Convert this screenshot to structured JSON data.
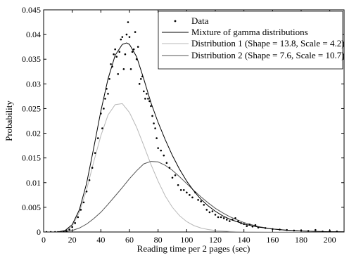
{
  "chart_data": {
    "type": "line",
    "title": "",
    "xlabel": "Reading time per 2 pages (sec)",
    "ylabel": "Probability",
    "xlim": [
      0,
      210
    ],
    "ylim": [
      0,
      0.045
    ],
    "xticks": [
      0,
      20,
      40,
      60,
      80,
      100,
      120,
      140,
      160,
      180,
      200
    ],
    "yticks": [
      0,
      0.005,
      0.01,
      0.015,
      0.02,
      0.025,
      0.03,
      0.035,
      0.04,
      0.045
    ],
    "ytick_labels": [
      "0",
      "0.005",
      "0.01",
      "0.015",
      "0.02",
      "0.025",
      "0.03",
      "0.035",
      "0.04",
      "0.045"
    ],
    "grid": false,
    "legend_position": "top-right",
    "colors": {
      "data": "#000000",
      "mixture": "#000000",
      "dist1": "#b8b8b8",
      "dist2": "#555555"
    },
    "series": [
      {
        "name": "Data",
        "style": "points",
        "x": [
          2,
          5,
          8,
          10,
          12,
          14,
          16,
          18,
          20,
          22,
          24,
          26,
          28,
          30,
          32,
          34,
          36,
          38,
          40,
          41,
          42,
          43,
          44,
          45,
          46,
          47,
          48,
          49,
          50,
          51,
          52,
          53,
          54,
          55,
          56,
          57,
          58,
          59,
          60,
          61,
          62,
          63,
          64,
          65,
          66,
          67,
          68,
          69,
          70,
          71,
          72,
          73,
          74,
          75,
          76,
          77,
          78,
          79,
          80,
          82,
          84,
          86,
          88,
          90,
          92,
          94,
          96,
          98,
          100,
          102,
          104,
          106,
          108,
          110,
          112,
          114,
          116,
          118,
          120,
          122,
          124,
          126,
          128,
          130,
          132,
          134,
          136,
          138,
          140,
          142,
          144,
          146,
          148,
          150,
          155,
          160,
          165,
          170,
          175,
          180,
          185,
          190,
          195,
          200,
          205
        ],
        "y": [
          0,
          0,
          0,
          0,
          0,
          0,
          0.0002,
          0.0005,
          0.001,
          0.0018,
          0.003,
          0.0045,
          0.006,
          0.0082,
          0.0105,
          0.013,
          0.016,
          0.019,
          0.024,
          0.021,
          0.025,
          0.027,
          0.029,
          0.028,
          0.031,
          0.034,
          0.0335,
          0.036,
          0.037,
          0.0355,
          0.032,
          0.0365,
          0.039,
          0.0395,
          0.033,
          0.036,
          0.04,
          0.0425,
          0.0395,
          0.033,
          0.0365,
          0.037,
          0.0405,
          0.035,
          0.0375,
          0.03,
          0.031,
          0.0315,
          0.0285,
          0.027,
          0.028,
          0.027,
          0.0265,
          0.0255,
          0.0235,
          0.022,
          0.021,
          0.019,
          0.017,
          0.0165,
          0.0155,
          0.014,
          0.013,
          0.011,
          0.0115,
          0.0095,
          0.0085,
          0.0085,
          0.008,
          0.0075,
          0.007,
          0.008,
          0.0065,
          0.0062,
          0.0055,
          0.0045,
          0.004,
          0.0042,
          0.0035,
          0.003,
          0.003,
          0.0028,
          0.0025,
          0.0022,
          0.0025,
          0.0028,
          0.0022,
          0.0018,
          0.0016,
          0.0012,
          0.0015,
          0.0011,
          0.0014,
          0.0009,
          0.0008,
          0.0006,
          0.0005,
          0.0004,
          0.0003,
          0.0003,
          0.0002,
          0.0004,
          0.0001,
          0.0002,
          0.0001
        ]
      },
      {
        "name": "Mixture of gamma distributions",
        "style": "line",
        "x": [
          0,
          5,
          10,
          15,
          20,
          25,
          30,
          35,
          40,
          45,
          50,
          55,
          58,
          60,
          65,
          70,
          75,
          80,
          85,
          90,
          95,
          100,
          105,
          110,
          115,
          120,
          125,
          130,
          140,
          150,
          160,
          170,
          180,
          190,
          200,
          210
        ],
        "y": [
          0,
          0,
          2e-05,
          0.0003,
          0.0015,
          0.0045,
          0.0098,
          0.017,
          0.0245,
          0.031,
          0.0358,
          0.038,
          0.0383,
          0.038,
          0.0355,
          0.031,
          0.0262,
          0.0222,
          0.0187,
          0.0155,
          0.0127,
          0.0103,
          0.0083,
          0.0066,
          0.0053,
          0.0042,
          0.0033,
          0.0026,
          0.0016,
          0.001,
          0.0006,
          0.00035,
          0.0002,
          0.0001,
          6e-05,
          3e-05
        ]
      },
      {
        "name": "Distribution 1 (Shape = 13.8, Scale = 4.2)",
        "style": "line",
        "x": [
          0,
          5,
          10,
          15,
          20,
          25,
          30,
          35,
          40,
          45,
          50,
          55,
          60,
          65,
          70,
          75,
          80,
          85,
          90,
          95,
          100,
          105,
          110,
          115,
          120,
          130,
          140,
          150,
          160,
          180,
          200,
          210
        ],
        "y": [
          0,
          0,
          0,
          0.0002,
          0.0012,
          0.004,
          0.0085,
          0.0142,
          0.0195,
          0.0237,
          0.0258,
          0.026,
          0.0242,
          0.0212,
          0.0175,
          0.0137,
          0.0103,
          0.0073,
          0.005,
          0.0033,
          0.0021,
          0.0013,
          0.0008,
          0.0005,
          0.0003,
          0.0001,
          4e-05,
          1e-05,
          0,
          0,
          0,
          0
        ]
      },
      {
        "name": "Distribution 2 (Shape = 7.6, Scale = 10.7)",
        "style": "line",
        "x": [
          0,
          5,
          10,
          15,
          20,
          25,
          30,
          35,
          40,
          45,
          50,
          55,
          60,
          65,
          70,
          75,
          80,
          85,
          90,
          95,
          100,
          105,
          110,
          115,
          120,
          125,
          130,
          140,
          150,
          160,
          170,
          180,
          190,
          200,
          210
        ],
        "y": [
          0,
          0,
          2e-05,
          0.0001,
          0.0003,
          0.0008,
          0.0016,
          0.0027,
          0.004,
          0.0056,
          0.0073,
          0.009,
          0.0108,
          0.0124,
          0.0138,
          0.0143,
          0.0142,
          0.0135,
          0.0125,
          0.0112,
          0.0098,
          0.0084,
          0.0071,
          0.0059,
          0.0048,
          0.0039,
          0.0031,
          0.0019,
          0.0011,
          0.0006,
          0.00035,
          0.0002,
          0.0001,
          5e-05,
          3e-05
        ]
      }
    ]
  }
}
